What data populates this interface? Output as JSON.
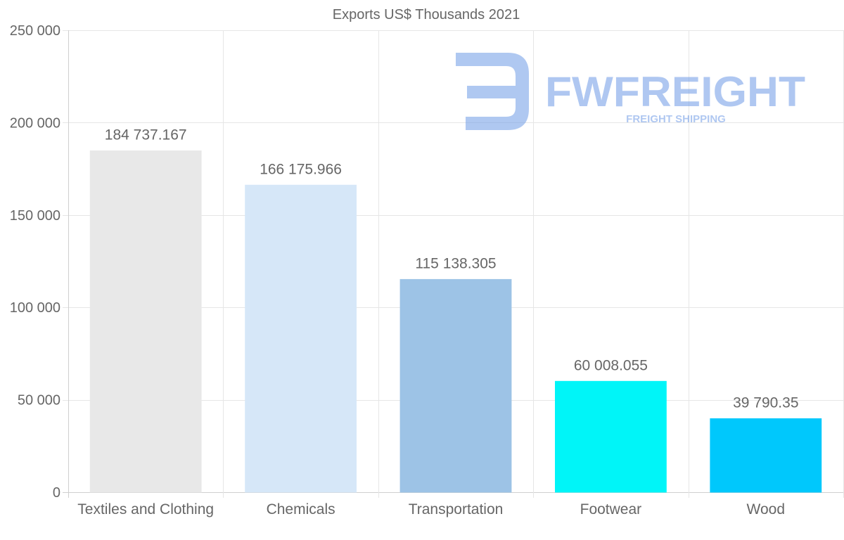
{
  "chart_data": {
    "type": "bar",
    "title": "Exports US$ Thousands 2021",
    "xlabel": "",
    "ylabel": "",
    "categories": [
      "Textiles and Clothing",
      "Chemicals",
      "Transportation",
      "Footwear",
      "Wood"
    ],
    "values": [
      184737.167,
      166175.966,
      115138.305,
      60008.055,
      39790.35
    ],
    "value_labels": [
      "184 737.167",
      "166 175.966",
      "115 138.305",
      "60 008.055",
      "39 790.35"
    ],
    "bar_colors": [
      "#e8e8e8",
      "#d6e7f8",
      "#9dc3e6",
      "#00f5f8",
      "#00c8fc"
    ],
    "ylim": [
      0,
      250000
    ],
    "yticks": [
      0,
      50000,
      100000,
      150000,
      200000,
      250000
    ],
    "ytick_labels": [
      "0",
      "50 000",
      "100 000",
      "150 000",
      "200 000",
      "250 000"
    ],
    "grid": true,
    "legend": "none"
  },
  "watermark": {
    "brand": "FWFREIGHT",
    "tagline": "FREIGHT SHIPPING",
    "color": "#6e9ae6"
  }
}
